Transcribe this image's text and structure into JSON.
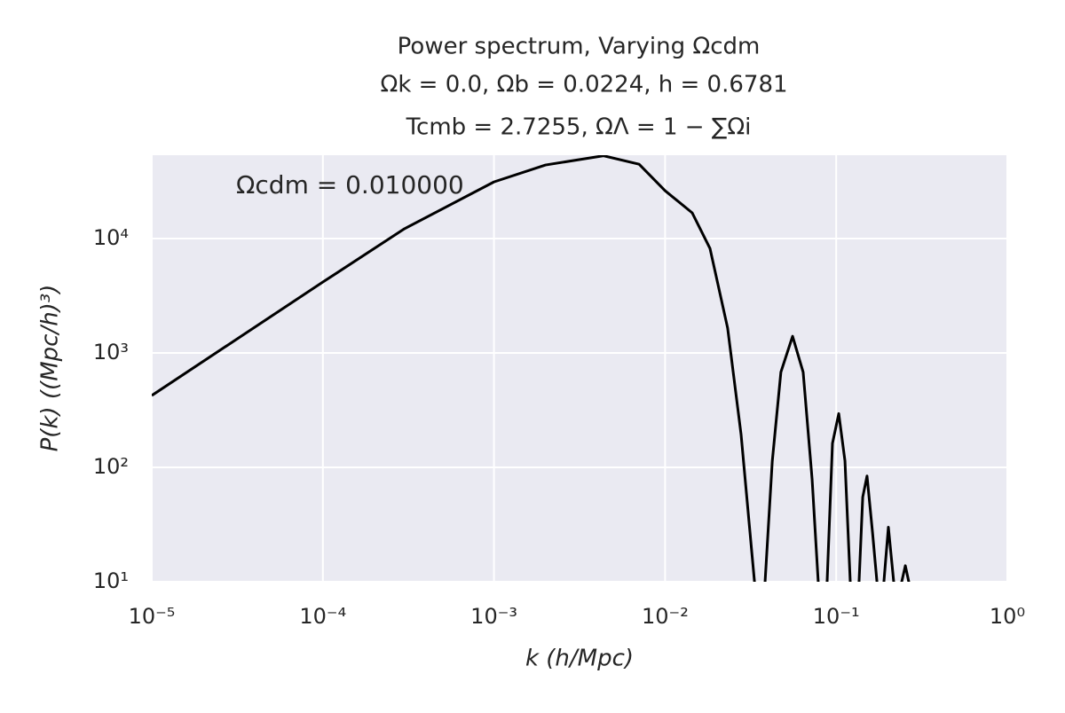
{
  "chart_data": {
    "type": "line",
    "title": [
      "Power spectrum, Varying Ωcdm",
      "Ωk = 0.0, Ωb = 0.0224, h = 0.6781",
      "Tcmb = 2.7255, ΩΛ = 1 − ∑Ωi"
    ],
    "annotation": "Ωcdm = 0.010000",
    "xlabel": "k  (h/Mpc)",
    "ylabel": "P(k)  ((Mpc/h)³)",
    "xscale": "log",
    "yscale": "log",
    "grid": true,
    "xlim": [
      1e-05,
      1
    ],
    "ylim": [
      10,
      53600
    ],
    "xticks": [
      {
        "value": 1e-05,
        "label": "10⁻⁵"
      },
      {
        "value": 0.0001,
        "label": "10⁻⁴"
      },
      {
        "value": 0.001,
        "label": "10⁻³"
      },
      {
        "value": 0.01,
        "label": "10⁻²"
      },
      {
        "value": 0.1,
        "label": "10⁻¹"
      },
      {
        "value": 1,
        "label": "10⁰"
      }
    ],
    "yticks": [
      {
        "value": 10,
        "label": "10¹"
      },
      {
        "value": 100,
        "label": "10²"
      },
      {
        "value": 1000,
        "label": "10³"
      },
      {
        "value": 10000,
        "label": "10⁴"
      }
    ],
    "x": [
      1e-05,
      0.0001,
      0.0003,
      0.001,
      0.002,
      0.00437,
      0.00705,
      0.01,
      0.0144,
      0.0183,
      0.0232,
      0.0278,
      0.0333,
      0.0353,
      0.0384,
      0.0423,
      0.0475,
      0.0556,
      0.0641,
      0.0723,
      0.0785,
      0.0824,
      0.0885,
      0.0951,
      0.1035,
      0.1125,
      0.1208,
      0.1268,
      0.136,
      0.1429,
      0.1514,
      0.163,
      0.173,
      0.179,
      0.19,
      0.2018,
      0.2168,
      0.2276,
      0.2415,
      0.2535,
      0.2655,
      0.2786
    ],
    "series": [
      {
        "color": "#000000",
        "values": [
          425,
          4170,
          12200,
          31300,
          44000,
          53000,
          44700,
          26200,
          16800,
          8200,
          1650,
          194,
          10,
          1,
          10,
          113,
          680,
          1400,
          680,
          79,
          10,
          1,
          10,
          162,
          295,
          114,
          10,
          1,
          10,
          55,
          84,
          27,
          10,
          1,
          10,
          30,
          10,
          1,
          10,
          13.8,
          10,
          0.5
        ]
      }
    ]
  }
}
